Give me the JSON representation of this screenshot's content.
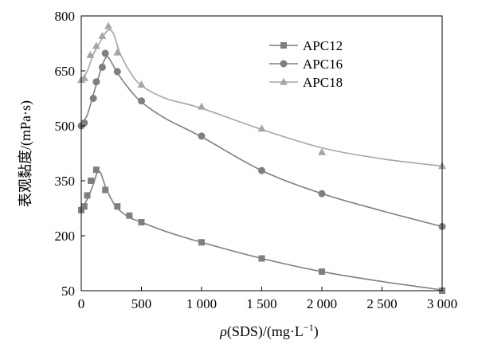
{
  "chart_data": {
    "type": "scatter",
    "xlabel_parts": {
      "rho": "ρ",
      "mid": "(SDS)/(mg·L",
      "sup": "−1",
      "end": ")"
    },
    "ylabel": "表观黏度/(mPa·s)",
    "xlim": [
      0,
      3000
    ],
    "ylim": [
      50,
      800
    ],
    "xticks": [
      0,
      500,
      1000,
      1500,
      2000,
      2500,
      3000
    ],
    "xtick_labels": [
      "0",
      "500",
      "1 000",
      "1 500",
      "2 000",
      "2 500",
      "3 000"
    ],
    "yticks": [
      50,
      200,
      350,
      500,
      650,
      800
    ],
    "ytick_labels": [
      "50",
      "200",
      "350",
      "500",
      "650",
      "800"
    ],
    "grid": false,
    "legend_position": "top-right",
    "series": [
      {
        "name": "APC12",
        "marker": "square",
        "color": "#7f7f7f",
        "x": [
          0,
          25,
          50,
          80,
          125,
          200,
          300,
          400,
          500,
          1000,
          1500,
          2000,
          3000
        ],
        "y": [
          270,
          280,
          310,
          350,
          380,
          325,
          280,
          255,
          237,
          182,
          138,
          102,
          50
        ],
        "curve_x": [
          0,
          50,
          100,
          130,
          160,
          200,
          250,
          300,
          400,
          500,
          700,
          1000,
          1500,
          2000,
          2500,
          3000
        ],
        "curve_y": [
          272,
          300,
          340,
          370,
          372,
          335,
          300,
          275,
          250,
          237,
          212,
          182,
          138,
          102,
          75,
          52
        ]
      },
      {
        "name": "APC16",
        "marker": "circle",
        "color": "#7f7f7f",
        "x": [
          0,
          25,
          100,
          125,
          175,
          200,
          300,
          500,
          1000,
          1500,
          2000,
          3000
        ],
        "y": [
          500,
          508,
          575,
          620,
          660,
          698,
          648,
          568,
          472,
          378,
          315,
          225
        ],
        "curve_x": [
          0,
          50,
          100,
          150,
          180,
          210,
          240,
          300,
          400,
          500,
          700,
          1000,
          1500,
          2000,
          2500,
          3000
        ],
        "curve_y": [
          500,
          530,
          585,
          640,
          670,
          688,
          680,
          645,
          600,
          565,
          520,
          470,
          378,
          315,
          268,
          225
        ]
      },
      {
        "name": "APC18",
        "marker": "triangle",
        "color": "#a6a6a6",
        "x": [
          0,
          25,
          75,
          125,
          175,
          225,
          300,
          500,
          1000,
          1500,
          2000,
          3000
        ],
        "y": [
          625,
          630,
          693,
          718,
          745,
          772,
          700,
          612,
          552,
          492,
          428,
          390
        ],
        "curve_x": [
          0,
          50,
          100,
          150,
          190,
          230,
          270,
          320,
          400,
          500,
          700,
          1000,
          1500,
          2000,
          2500,
          3000
        ],
        "curve_y": [
          622,
          650,
          695,
          725,
          748,
          762,
          750,
          700,
          650,
          610,
          575,
          548,
          490,
          440,
          410,
          390
        ]
      }
    ]
  }
}
